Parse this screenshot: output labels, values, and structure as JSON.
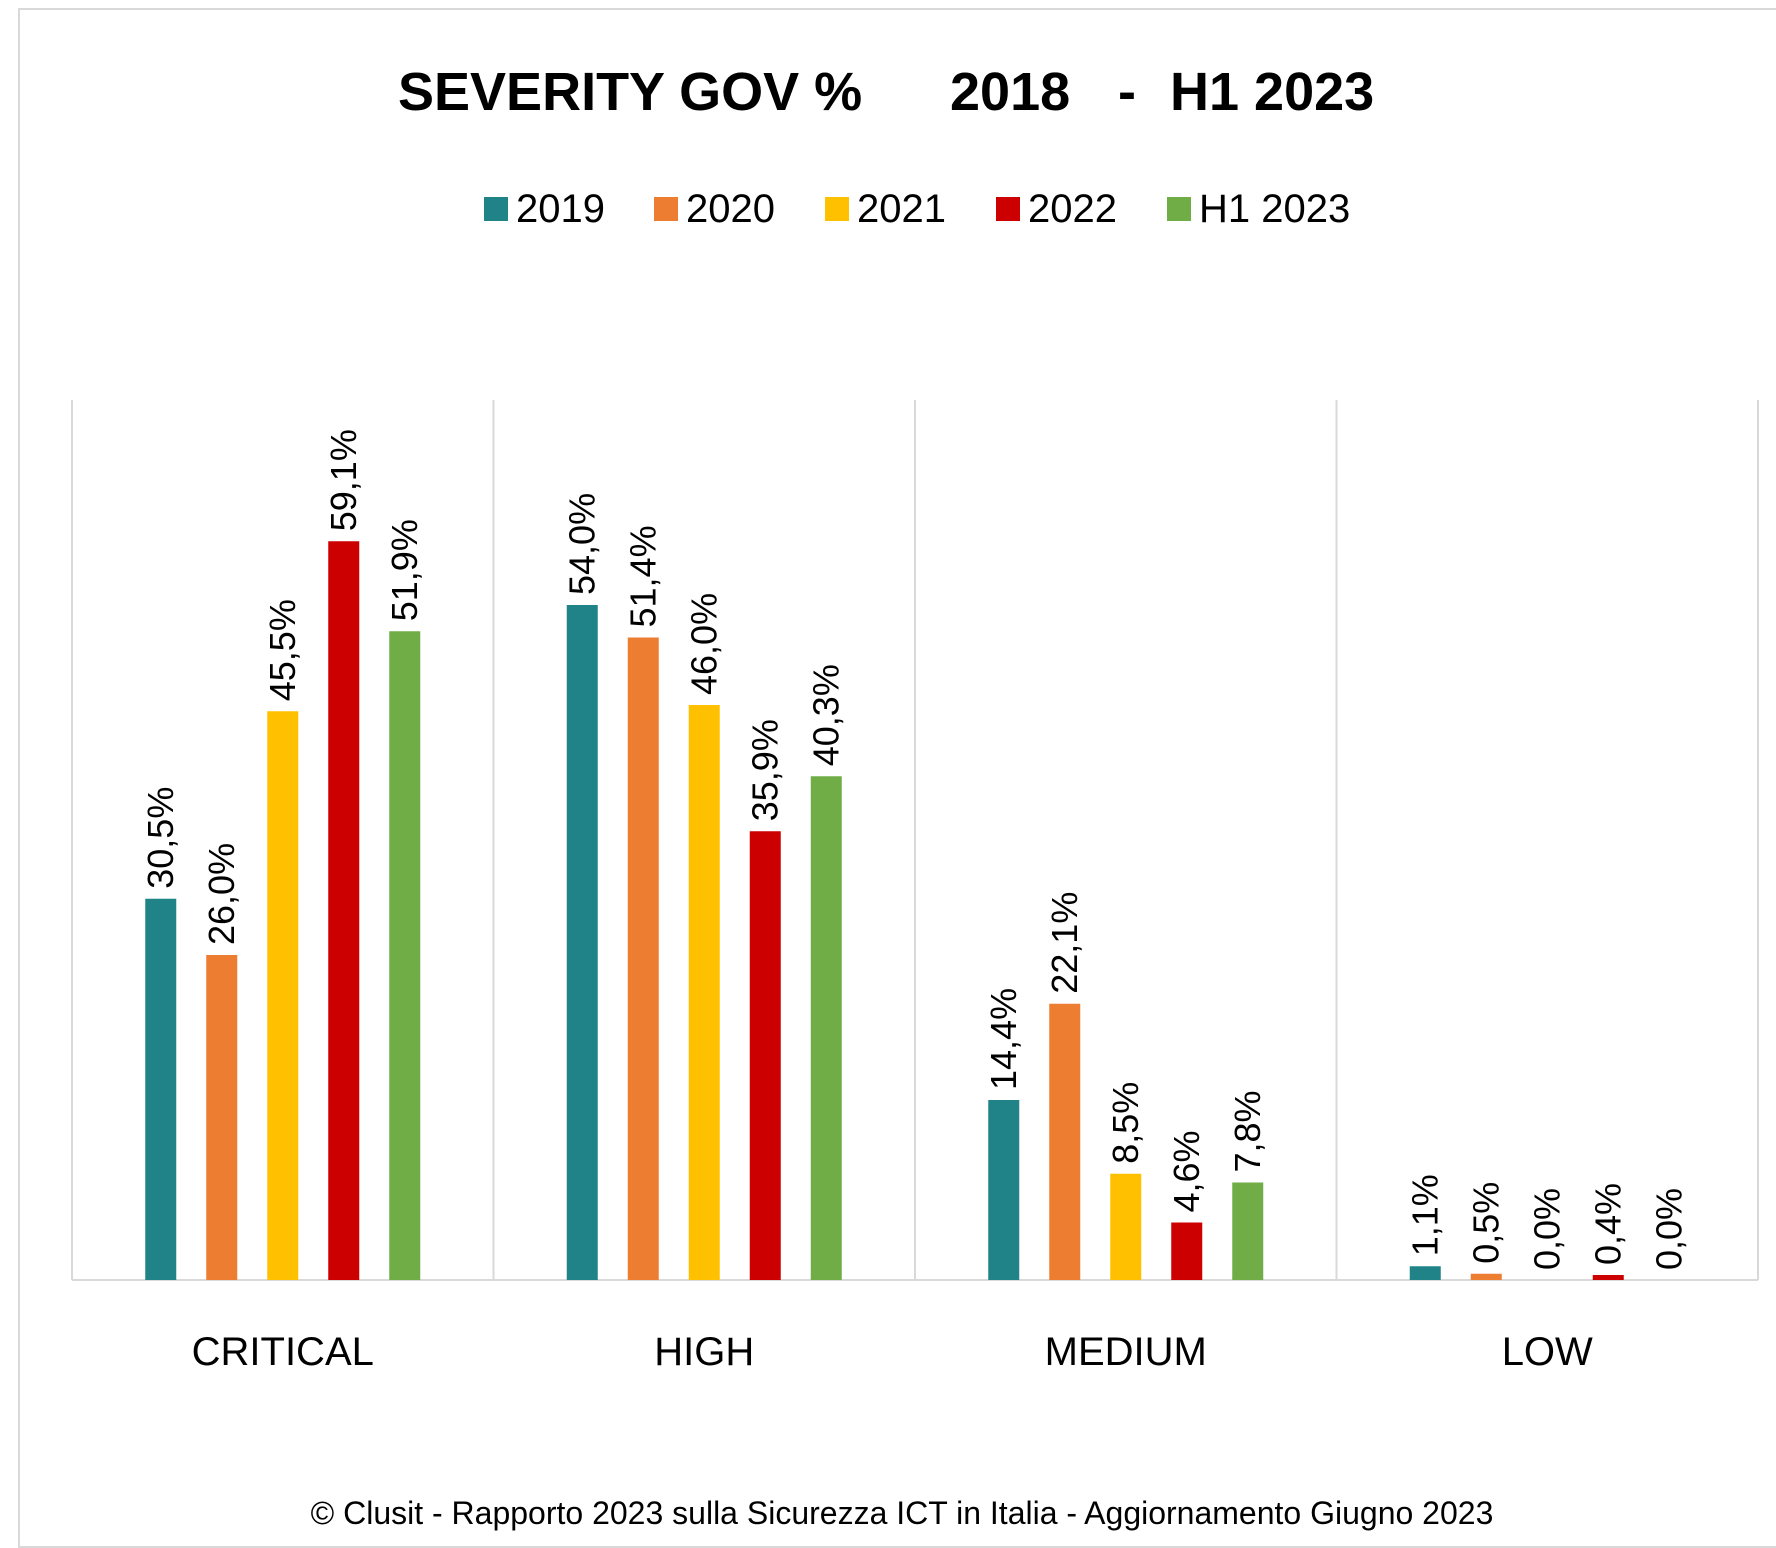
{
  "chart_data": {
    "type": "bar",
    "title": "SEVERITY GOV %",
    "title_period_start": "2018",
    "title_period_sep": "-",
    "title_period_end": "H1 2023",
    "categories": [
      "CRITICAL",
      "HIGH",
      "MEDIUM",
      "LOW"
    ],
    "series": [
      {
        "name": "2019",
        "color": "#1f8387",
        "values": [
          30.5,
          54.0,
          14.4,
          1.1
        ],
        "labels": [
          "30,5%",
          "54,0%",
          "14,4%",
          "1,1%"
        ]
      },
      {
        "name": "2020",
        "color": "#ed7d31",
        "values": [
          26.0,
          51.4,
          22.1,
          0.5
        ],
        "labels": [
          "26,0%",
          "51,4%",
          "22,1%",
          "0,5%"
        ]
      },
      {
        "name": "2021",
        "color": "#ffc000",
        "values": [
          45.5,
          46.0,
          8.5,
          0.0
        ],
        "labels": [
          "45,5%",
          "46,0%",
          "8,5%",
          "0,0%"
        ]
      },
      {
        "name": "2022",
        "color": "#cc0000",
        "values": [
          59.1,
          35.9,
          4.6,
          0.4
        ],
        "labels": [
          "59,1%",
          "35,9%",
          "4,6%",
          "0,4%"
        ]
      },
      {
        "name": "H1 2023",
        "color": "#70ad47",
        "values": [
          51.9,
          40.3,
          7.8,
          0.0
        ],
        "labels": [
          "51,9%",
          "40,3%",
          "7,8%",
          "0,0%"
        ]
      }
    ],
    "xlabel": "",
    "ylabel": "",
    "ylim": [
      0,
      70
    ],
    "legend": "top",
    "grid": "vertical category separators"
  },
  "footer": "© Clusit - Rapporto 2023 sulla Sicurezza ICT in Italia - Aggiornamento Giugno 2023"
}
